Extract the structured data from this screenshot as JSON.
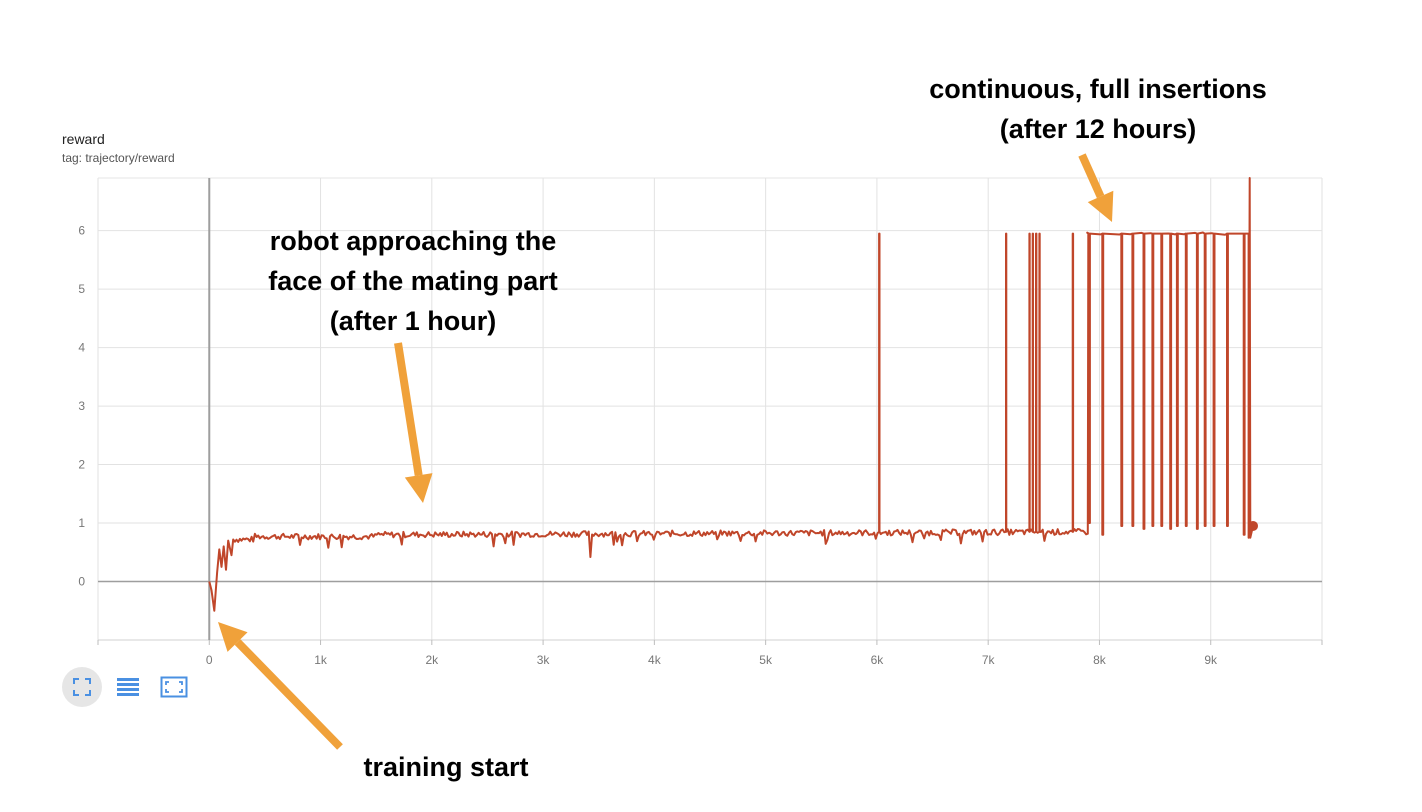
{
  "header": {
    "title": "reward",
    "tag": "tag: trajectory/reward"
  },
  "toolbar": {
    "buttons": [
      {
        "name": "fit-domain-button",
        "icon": "expand-icon"
      },
      {
        "name": "toggle-log-button",
        "icon": "lines-icon"
      },
      {
        "name": "fullscreen-button",
        "icon": "frame-icon"
      }
    ],
    "accent": "#4a90e2"
  },
  "annotations": {
    "top": [
      "continuous, full insertions",
      "(after 12 hours)"
    ],
    "middle": [
      "robot approaching the",
      "face of the mating part",
      "(after 1 hour)"
    ],
    "bottom": [
      "training start"
    ],
    "arrow_color": "#f0a13a"
  },
  "chart_data": {
    "type": "line",
    "xlim": [
      -1000,
      10000
    ],
    "ylim": [
      -1,
      6.9
    ],
    "x_ticks": [
      0,
      1000,
      2000,
      3000,
      4000,
      5000,
      6000,
      7000,
      8000,
      9000
    ],
    "x_tick_labels": [
      "0",
      "1k",
      "2k",
      "3k",
      "4k",
      "5k",
      "6k",
      "7k",
      "8k",
      "9k"
    ],
    "y_ticks": [
      0,
      1,
      2,
      3,
      4,
      5,
      6
    ],
    "y_tick_labels": [
      "0",
      "1",
      "2",
      "3",
      "4",
      "5",
      "6"
    ],
    "grid": true,
    "line_color": "#c0462a",
    "last_point": {
      "x": 9380,
      "y": 0.95
    },
    "spikes": [
      {
        "x": 6020,
        "y": 5.95
      },
      {
        "x": 7150,
        "y": 5.95
      },
      {
        "x": 7360,
        "y": 5.95
      },
      {
        "x": 7390,
        "y": 5.95
      },
      {
        "x": 7420,
        "y": 5.95
      },
      {
        "x": 7460,
        "y": 5.95
      },
      {
        "x": 7760,
        "y": 5.95
      }
    ],
    "plateau_dips": [
      {
        "x": 7910,
        "y": 1.0
      },
      {
        "x": 8030,
        "y": 0.8
      },
      {
        "x": 8200,
        "y": 0.95
      },
      {
        "x": 8300,
        "y": 0.95
      },
      {
        "x": 8400,
        "y": 0.9
      },
      {
        "x": 8480,
        "y": 0.95
      },
      {
        "x": 8560,
        "y": 0.95
      },
      {
        "x": 8640,
        "y": 0.9
      },
      {
        "x": 8700,
        "y": 0.95
      },
      {
        "x": 8780,
        "y": 0.95
      },
      {
        "x": 8880,
        "y": 0.9
      },
      {
        "x": 8950,
        "y": 0.95
      },
      {
        "x": 9030,
        "y": 0.95
      },
      {
        "x": 9150,
        "y": 0.95
      },
      {
        "x": 9300,
        "y": 0.8
      }
    ],
    "final_spike": {
      "x": 9350,
      "y": 6.9
    }
  }
}
